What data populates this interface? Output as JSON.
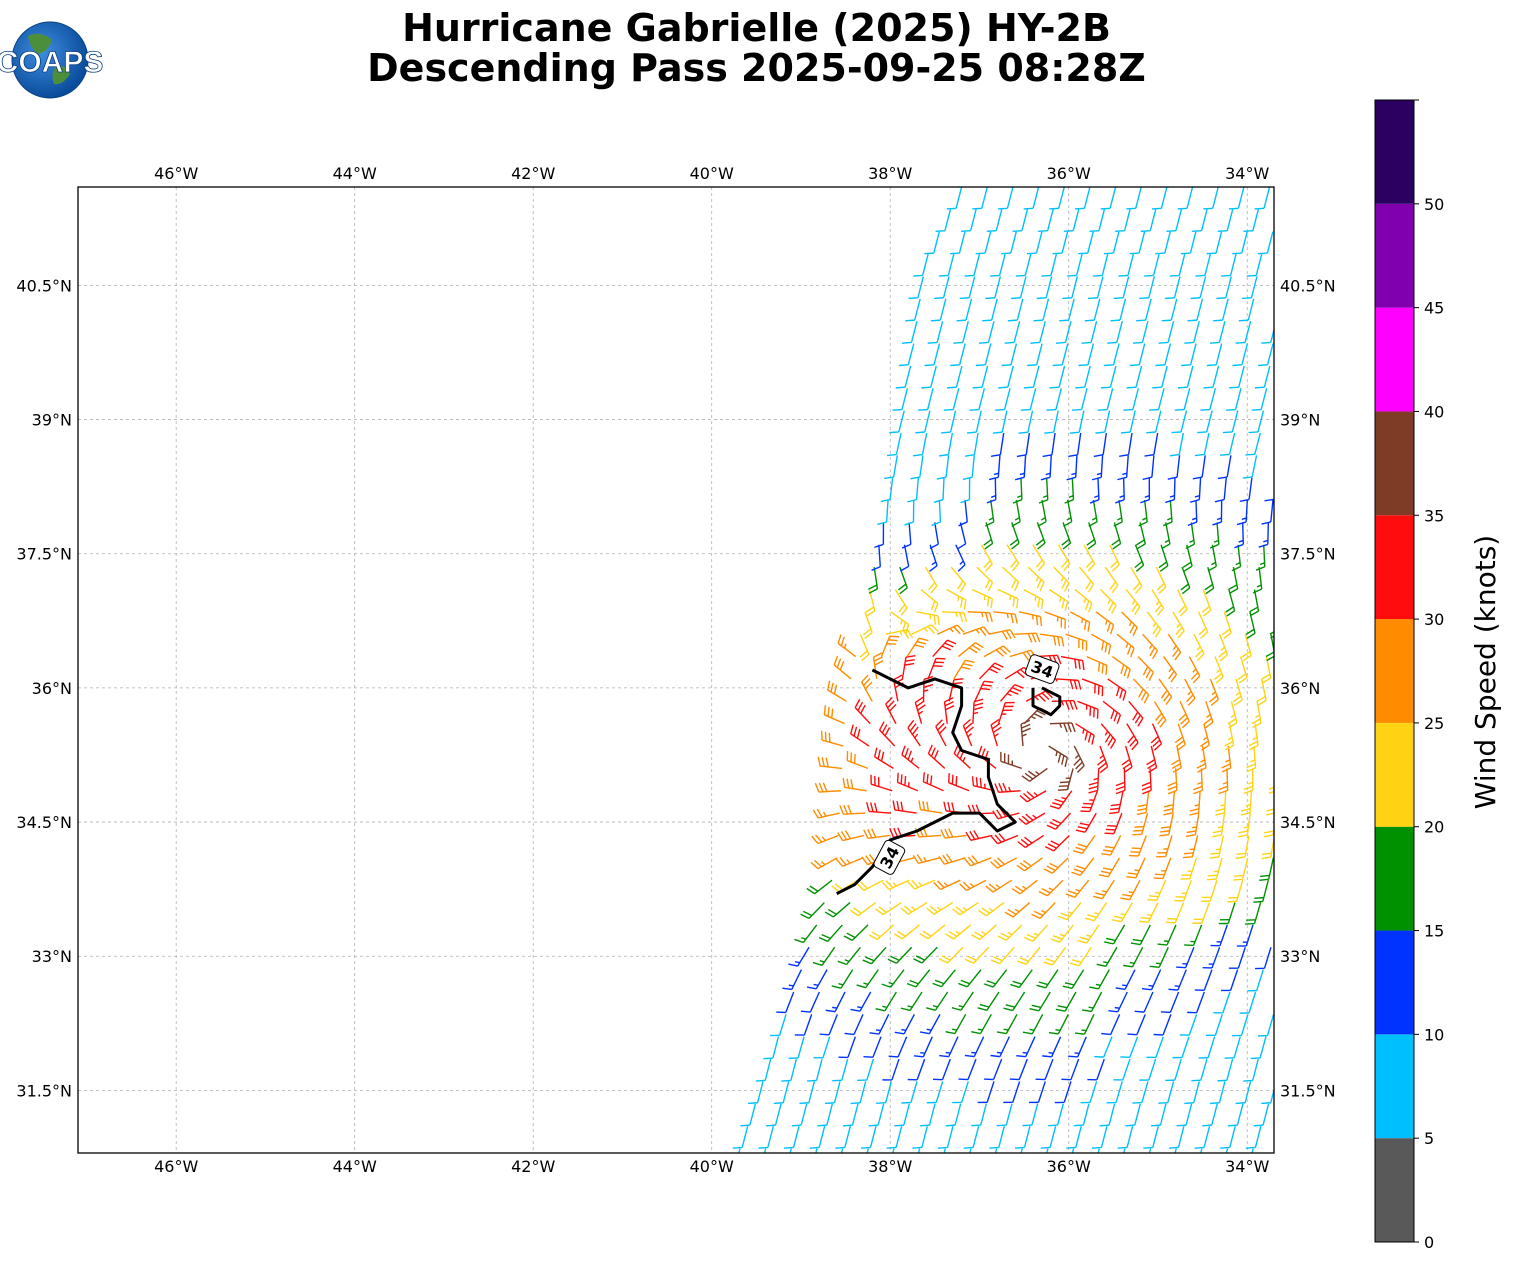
{
  "title": {
    "line1": "Hurricane Gabrielle (2025) HY-2B",
    "line2": "Descending Pass 2025-09-25 08:28Z"
  },
  "logo": {
    "text": "COAPS"
  },
  "map": {
    "lon_range": [
      -47.1,
      -33.7
    ],
    "lat_range": [
      30.8,
      41.6
    ],
    "lon_ticks": [
      {
        "value": -46,
        "label": "46°W"
      },
      {
        "value": -44,
        "label": "44°W"
      },
      {
        "value": -42,
        "label": "42°W"
      },
      {
        "value": -40,
        "label": "40°W"
      },
      {
        "value": -38,
        "label": "38°W"
      },
      {
        "value": -36,
        "label": "36°W"
      },
      {
        "value": -34,
        "label": "34°W"
      }
    ],
    "lat_ticks": [
      {
        "value": 40.5,
        "label": "40.5°N"
      },
      {
        "value": 39,
        "label": "39°N"
      },
      {
        "value": 37.5,
        "label": "37.5°N"
      },
      {
        "value": 36,
        "label": "36°N"
      },
      {
        "value": 34.5,
        "label": "34.5°N"
      },
      {
        "value": 33,
        "label": "33°N"
      },
      {
        "value": 31.5,
        "label": "31.5°N"
      }
    ],
    "gridlines": true,
    "swath_west_edge": [
      [
        -39.8,
        30.8
      ],
      [
        -38.7,
        34.0
      ],
      [
        -38.6,
        35.8
      ],
      [
        -38.0,
        38.7
      ],
      [
        -37.7,
        40.8
      ],
      [
        -37.3,
        41.6
      ]
    ],
    "swath_east_edge": [
      [
        -33.7,
        30.8
      ],
      [
        -33.7,
        41.6
      ]
    ],
    "storm_center": {
      "lon": -36.3,
      "lat": 35.3
    },
    "contour_34kt": {
      "label": "34",
      "line_a": [
        [
          -38.6,
          33.7
        ],
        [
          -38.4,
          33.8
        ],
        [
          -38.2,
          34.0
        ],
        [
          -38.0,
          34.3
        ],
        [
          -37.7,
          34.4
        ],
        [
          -37.3,
          34.6
        ],
        [
          -37.0,
          34.6
        ],
        [
          -36.8,
          34.4
        ],
        [
          -36.6,
          34.5
        ],
        [
          -36.8,
          34.7
        ],
        [
          -36.9,
          35.0
        ],
        [
          -36.9,
          35.2
        ],
        [
          -37.2,
          35.3
        ],
        [
          -37.3,
          35.5
        ],
        [
          -37.2,
          35.8
        ],
        [
          -37.2,
          36.0
        ],
        [
          -37.5,
          36.1
        ],
        [
          -37.8,
          36.0
        ],
        [
          -38.0,
          36.1
        ],
        [
          -38.2,
          36.2
        ]
      ],
      "line_b": [
        [
          -36.4,
          36.0
        ],
        [
          -36.4,
          35.8
        ],
        [
          -36.2,
          35.7
        ],
        [
          -36.1,
          35.8
        ],
        [
          -36.1,
          35.9
        ],
        [
          -36.3,
          36.0
        ]
      ],
      "label_a": {
        "lon": -38.0,
        "lat": 34.1
      },
      "label_b": {
        "lon": -36.3,
        "lat": 36.2
      }
    }
  },
  "colorbar": {
    "label": "Wind Speed (knots)",
    "min": 0,
    "max": 55,
    "bins": [
      {
        "from": 0,
        "to": 5,
        "color": "#595959"
      },
      {
        "from": 5,
        "to": 10,
        "color": "#00bfff"
      },
      {
        "from": 10,
        "to": 15,
        "color": "#0033ff"
      },
      {
        "from": 15,
        "to": 20,
        "color": "#009100"
      },
      {
        "from": 20,
        "to": 25,
        "color": "#ffd314"
      },
      {
        "from": 25,
        "to": 30,
        "color": "#ff8c00"
      },
      {
        "from": 30,
        "to": 35,
        "color": "#ff0d0d"
      },
      {
        "from": 35,
        "to": 40,
        "color": "#7e3b26"
      },
      {
        "from": 40,
        "to": 45,
        "color": "#ff00ff"
      },
      {
        "from": 45,
        "to": 50,
        "color": "#8000b0"
      },
      {
        "from": 50,
        "to": 55,
        "color": "#2b0060"
      }
    ],
    "tick_labels": [
      "0",
      "5",
      "10",
      "15",
      "20",
      "25",
      "30",
      "35",
      "40",
      "45",
      "50"
    ]
  }
}
